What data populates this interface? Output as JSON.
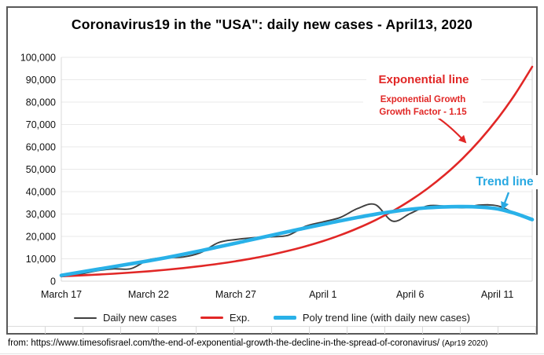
{
  "title": "Coronavirus19 in the \"USA\": daily new cases - April13, 2020",
  "annotations": {
    "exponential": {
      "label": "Exponential line",
      "sub1": "Exponential Growth",
      "sub2": "Growth Factor - 1.15",
      "color": "#e12726"
    },
    "trend": {
      "label": "Trend line",
      "color": "#29a9e2"
    }
  },
  "source_line": {
    "prefix": "from:",
    "url": "https://www.timesofisrael.com/the-end-of-exponential-growth-the-decline-in-the-spread-of-coronavirus/",
    "date_note": "(Apr19 2020)"
  },
  "colors": {
    "frame_border": "#595959",
    "gridline": "#e9e9e9",
    "plot_border": "#d9d9d9",
    "axis_text": "#111111"
  },
  "chart_data": {
    "type": "line",
    "title": "Coronavirus19 in the \"USA\": daily new cases - April13, 2020",
    "grid": "horizontal",
    "legend_position": "bottom",
    "ylim": [
      0,
      100000
    ],
    "y_tick_step": 10000,
    "x_axis_tick_labels": [
      "March 17",
      "March 22",
      "March 27",
      "April 1",
      "April 6",
      "April 11"
    ],
    "x_axis_tick_days": [
      0,
      5,
      10,
      15,
      20,
      25
    ],
    "dates": [
      "Mar 17",
      "Mar 18",
      "Mar 19",
      "Mar 20",
      "Mar 21",
      "Mar 22",
      "Mar 23",
      "Mar 24",
      "Mar 25",
      "Mar 26",
      "Mar 27",
      "Mar 28",
      "Mar 29",
      "Mar 30",
      "Mar 31",
      "Apr 1",
      "Apr 2",
      "Apr 3",
      "Apr 4",
      "Apr 5",
      "Apr 6",
      "Apr 7",
      "Apr 8",
      "Apr 9",
      "Apr 10",
      "Apr 11",
      "Apr 12",
      "Apr 13"
    ],
    "series": [
      {
        "name": "Daily new cases",
        "color": "#3f3f3f",
        "width": 1.9,
        "values": [
          2000,
          3000,
          4600,
          5500,
          5600,
          9500,
          10500,
          10800,
          12800,
          17200,
          18600,
          19400,
          19800,
          20500,
          24500,
          26500,
          28500,
          32500,
          34200,
          26800,
          30200,
          33600,
          33500,
          32800,
          34000,
          33700,
          30500,
          28000
        ]
      },
      {
        "name": "Exp.",
        "color": "#e12726",
        "width": 2.6,
        "growth_factor": 1.15,
        "values": [
          2200,
          2530,
          2910,
          3346,
          3848,
          4425,
          5089,
          5852,
          6730,
          7739,
          8900,
          10235,
          11770,
          13536,
          15566,
          17901,
          20587,
          23675,
          27226,
          31310,
          36006,
          41407,
          47618,
          54761,
          62975,
          72421,
          83284,
          95777
        ]
      },
      {
        "name": "Poly trend line (with daily new cases)",
        "color": "#29b1e8",
        "width": 4.6,
        "values": [
          2600,
          3900,
          5200,
          6500,
          7800,
          9100,
          10500,
          12000,
          13600,
          15300,
          17000,
          18700,
          20400,
          22100,
          23800,
          25400,
          27000,
          28500,
          29900,
          31100,
          32100,
          32800,
          33200,
          33300,
          33100,
          32300,
          30300,
          27500
        ]
      }
    ]
  }
}
